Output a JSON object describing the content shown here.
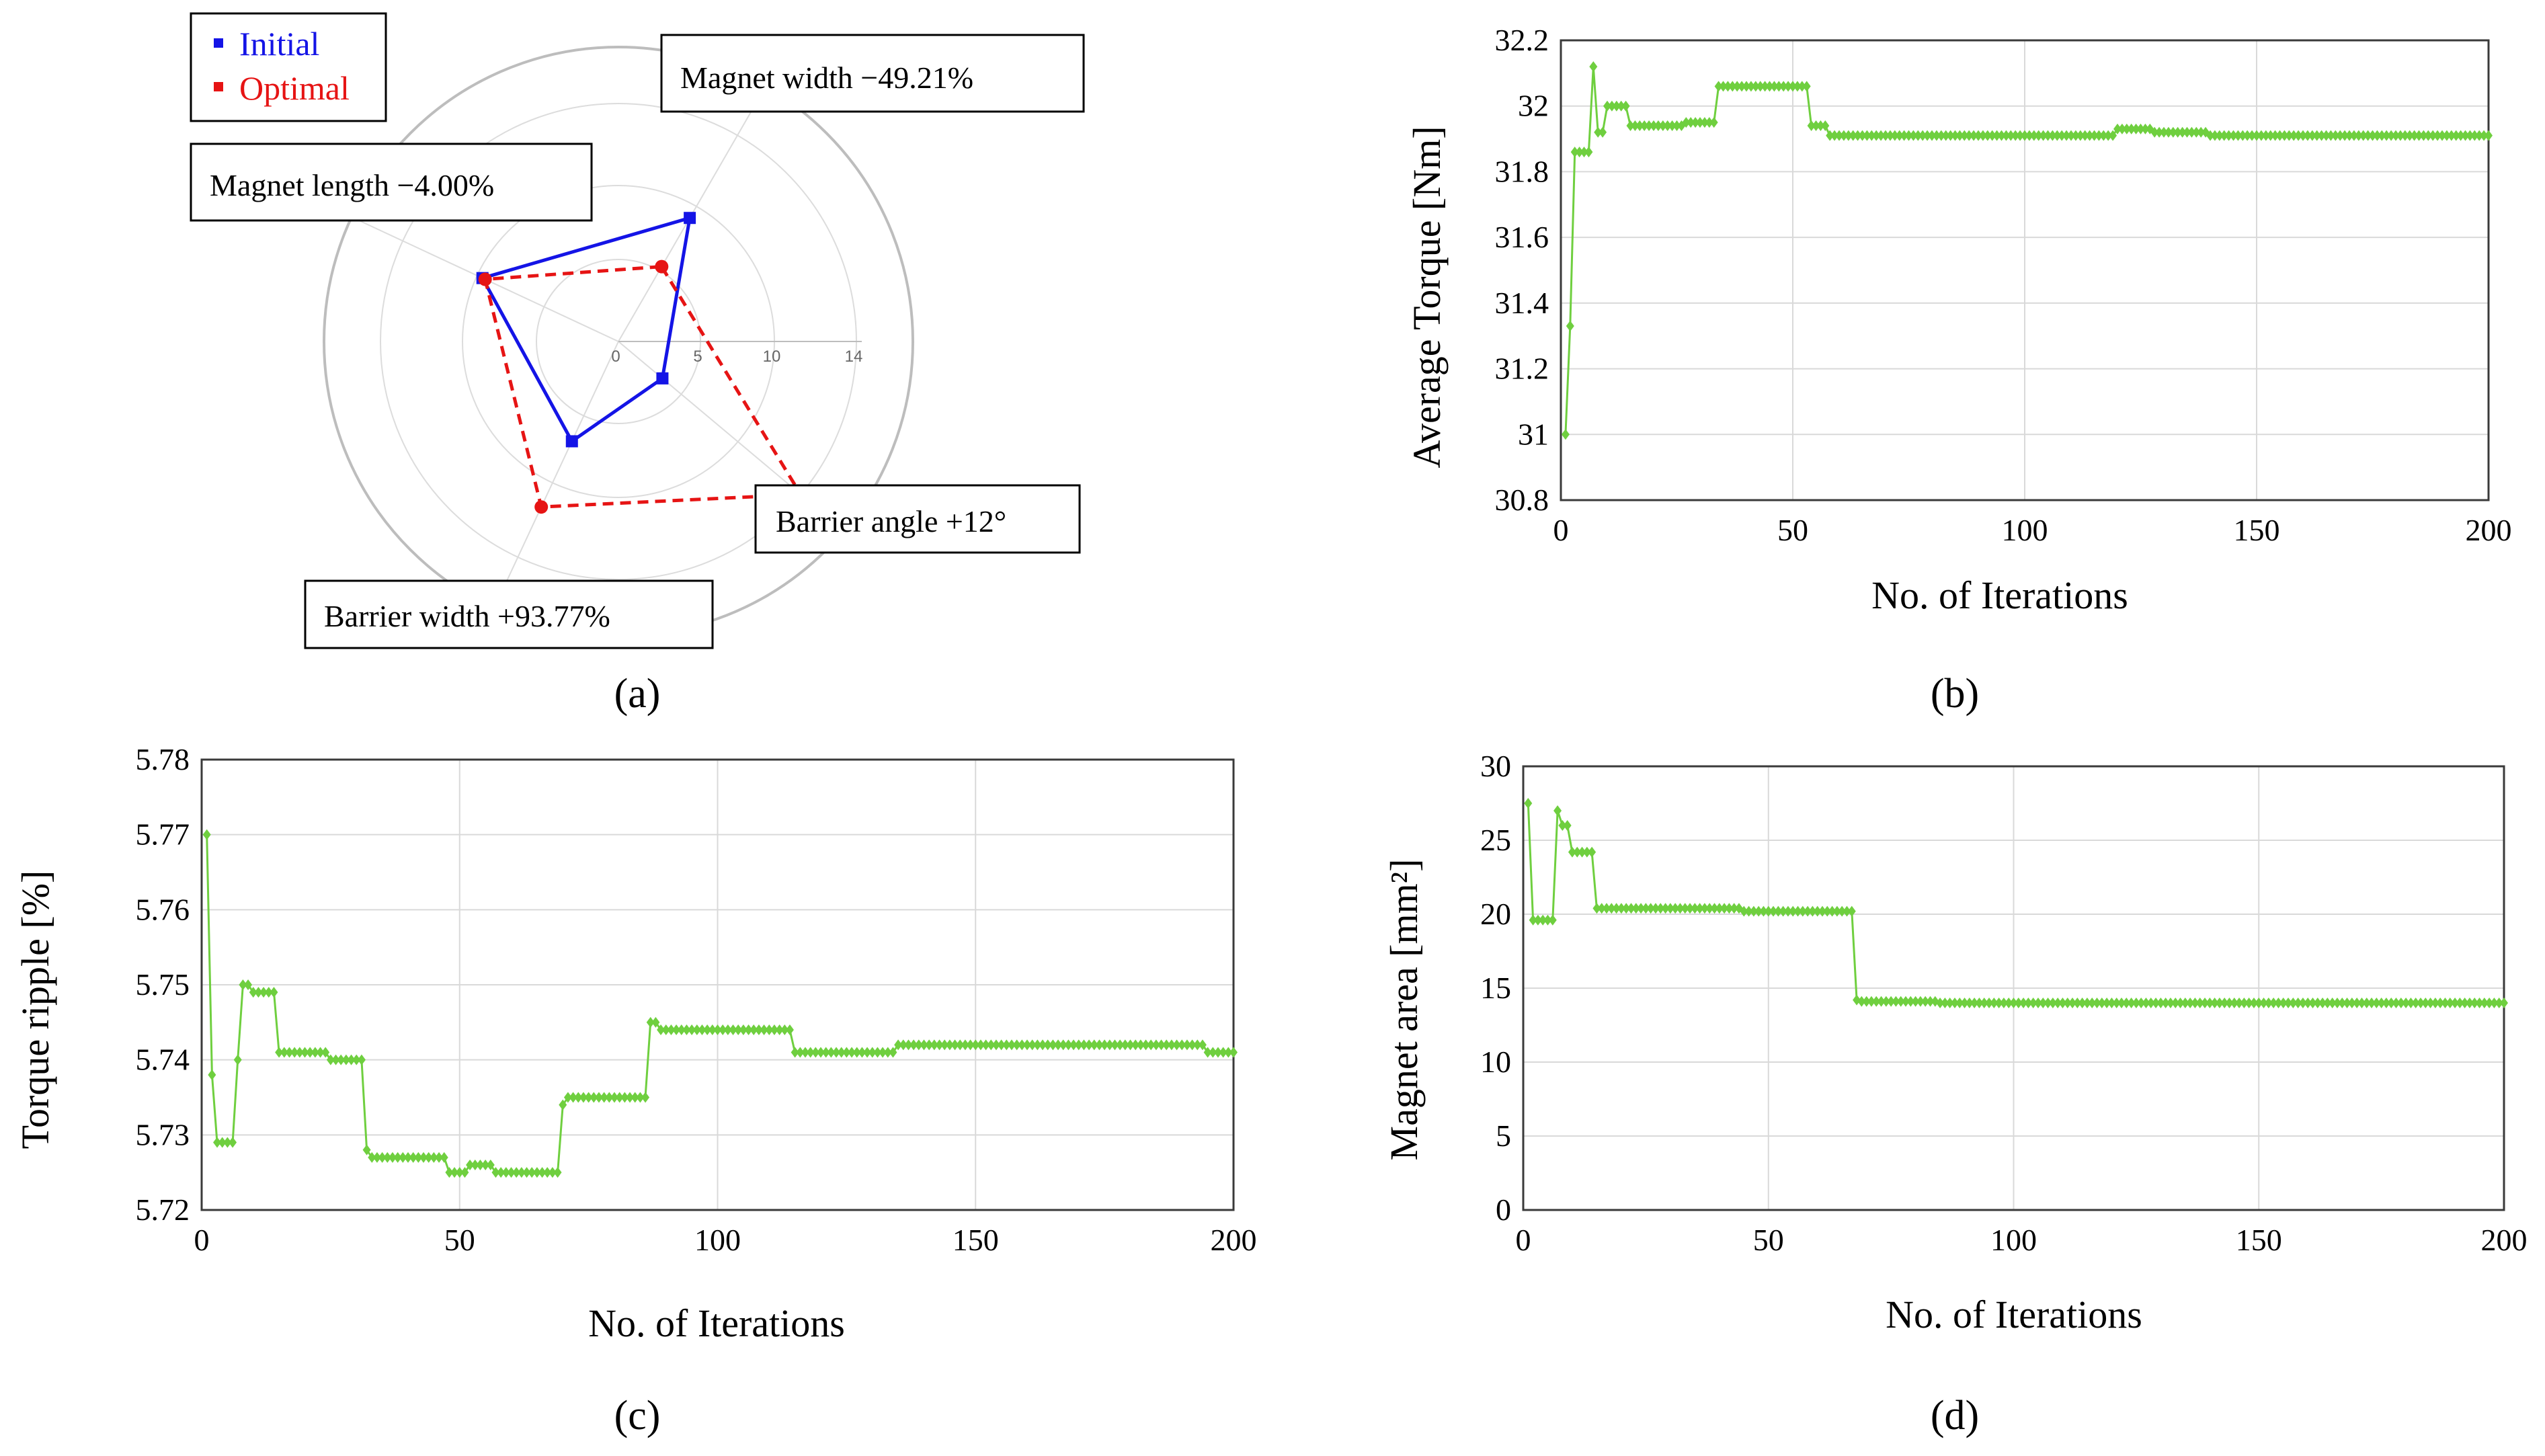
{
  "colors": {
    "series": "#6fcf3f",
    "initial": "#1414e6",
    "optimal": "#e61414",
    "grid": "#d9d9d9",
    "radarRing": "#bdbdbd"
  },
  "panels": {
    "a": {
      "label": "(a)"
    },
    "b": {
      "label": "(b)"
    },
    "c": {
      "label": "(c)"
    },
    "d": {
      "label": "(d)"
    }
  },
  "chart_data": [
    {
      "id": "a",
      "type": "radar",
      "legend": [
        "Initial",
        "Optimal"
      ],
      "axes": [
        "Magnet width",
        "Barrier angle",
        "Barrier width",
        "Magnet length"
      ],
      "annotations": [
        "Magnet width −49.21%",
        "Barrier angle +12°",
        "Barrier width +93.77%",
        "Magnet length −4.00%"
      ],
      "ring_labels": [
        "0",
        "5",
        "10",
        "14"
      ],
      "rmax": 14,
      "series": [
        {
          "name": "Initial",
          "values": [
            9.1,
            3.5,
            6.9,
            9.6
          ]
        },
        {
          "name": "Optimal",
          "values": [
            5.3,
            14.0,
            11.3,
            9.4
          ]
        }
      ]
    },
    {
      "id": "b",
      "type": "line",
      "xlabel": "No. of Iterations",
      "ylabel": "Average Torque [Nm]",
      "xlim": [
        0,
        200
      ],
      "ylim": [
        30.8,
        32.2
      ],
      "xticks": [
        "0",
        "50",
        "100",
        "150",
        "200"
      ],
      "yticks": [
        "30.8",
        "31",
        "31.2",
        "31.4",
        "31.6",
        "31.8",
        "32",
        "32.2"
      ],
      "steps": [
        [
          1,
          31.0
        ],
        [
          2,
          31.33
        ],
        [
          3,
          31.86
        ],
        [
          7,
          32.12
        ],
        [
          8,
          31.92
        ],
        [
          10,
          32.0
        ],
        [
          15,
          31.94
        ],
        [
          27,
          31.95
        ],
        [
          34,
          32.06
        ],
        [
          54,
          31.94
        ],
        [
          58,
          31.91
        ],
        [
          120,
          31.93
        ],
        [
          128,
          31.92
        ],
        [
          140,
          31.91
        ],
        [
          200,
          31.91
        ]
      ]
    },
    {
      "id": "c",
      "type": "line",
      "xlabel": "No. of Iterations",
      "ylabel": "Torque ripple [%]",
      "xlim": [
        0,
        200
      ],
      "ylim": [
        5.72,
        5.78
      ],
      "xticks": [
        "0",
        "50",
        "100",
        "150",
        "200"
      ],
      "yticks": [
        "5.72",
        "5.73",
        "5.74",
        "5.75",
        "5.76",
        "5.77",
        "5.78"
      ],
      "steps": [
        [
          1,
          5.77
        ],
        [
          2,
          5.738
        ],
        [
          3,
          5.729
        ],
        [
          7,
          5.74
        ],
        [
          8,
          5.75
        ],
        [
          10,
          5.749
        ],
        [
          15,
          5.741
        ],
        [
          25,
          5.74
        ],
        [
          32,
          5.728
        ],
        [
          33,
          5.727
        ],
        [
          48,
          5.725
        ],
        [
          52,
          5.726
        ],
        [
          57,
          5.725
        ],
        [
          70,
          5.734
        ],
        [
          71,
          5.735
        ],
        [
          87,
          5.745
        ],
        [
          89,
          5.744
        ],
        [
          115,
          5.741
        ],
        [
          135,
          5.742
        ],
        [
          195,
          5.741
        ],
        [
          200,
          5.741
        ]
      ]
    },
    {
      "id": "d",
      "type": "line",
      "xlabel": "No. of Iterations",
      "ylabel": "Magnet area [mm²]",
      "xlim": [
        0,
        200
      ],
      "ylim": [
        0,
        30
      ],
      "xticks": [
        "0",
        "50",
        "100",
        "150",
        "200"
      ],
      "yticks": [
        "0",
        "5",
        "10",
        "15",
        "20",
        "25",
        "30"
      ],
      "steps": [
        [
          1,
          27.5
        ],
        [
          2,
          19.6
        ],
        [
          7,
          27.0
        ],
        [
          8,
          26.0
        ],
        [
          10,
          24.2
        ],
        [
          15,
          20.4
        ],
        [
          45,
          20.2
        ],
        [
          68,
          14.2
        ],
        [
          69,
          14.1
        ],
        [
          85,
          14.0
        ],
        [
          200,
          14.0
        ]
      ]
    }
  ]
}
